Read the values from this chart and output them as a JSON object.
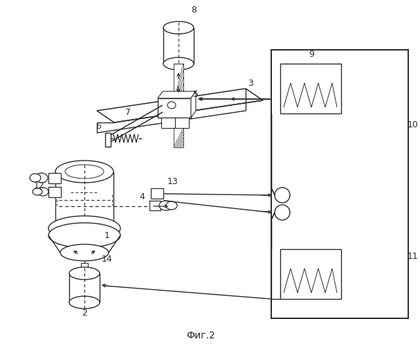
{
  "title": "Фиг.2",
  "bg_color": "#ffffff",
  "lc": "#2a2a2a",
  "fig_width": 6.07,
  "fig_height": 5.0,
  "dpi": 100
}
